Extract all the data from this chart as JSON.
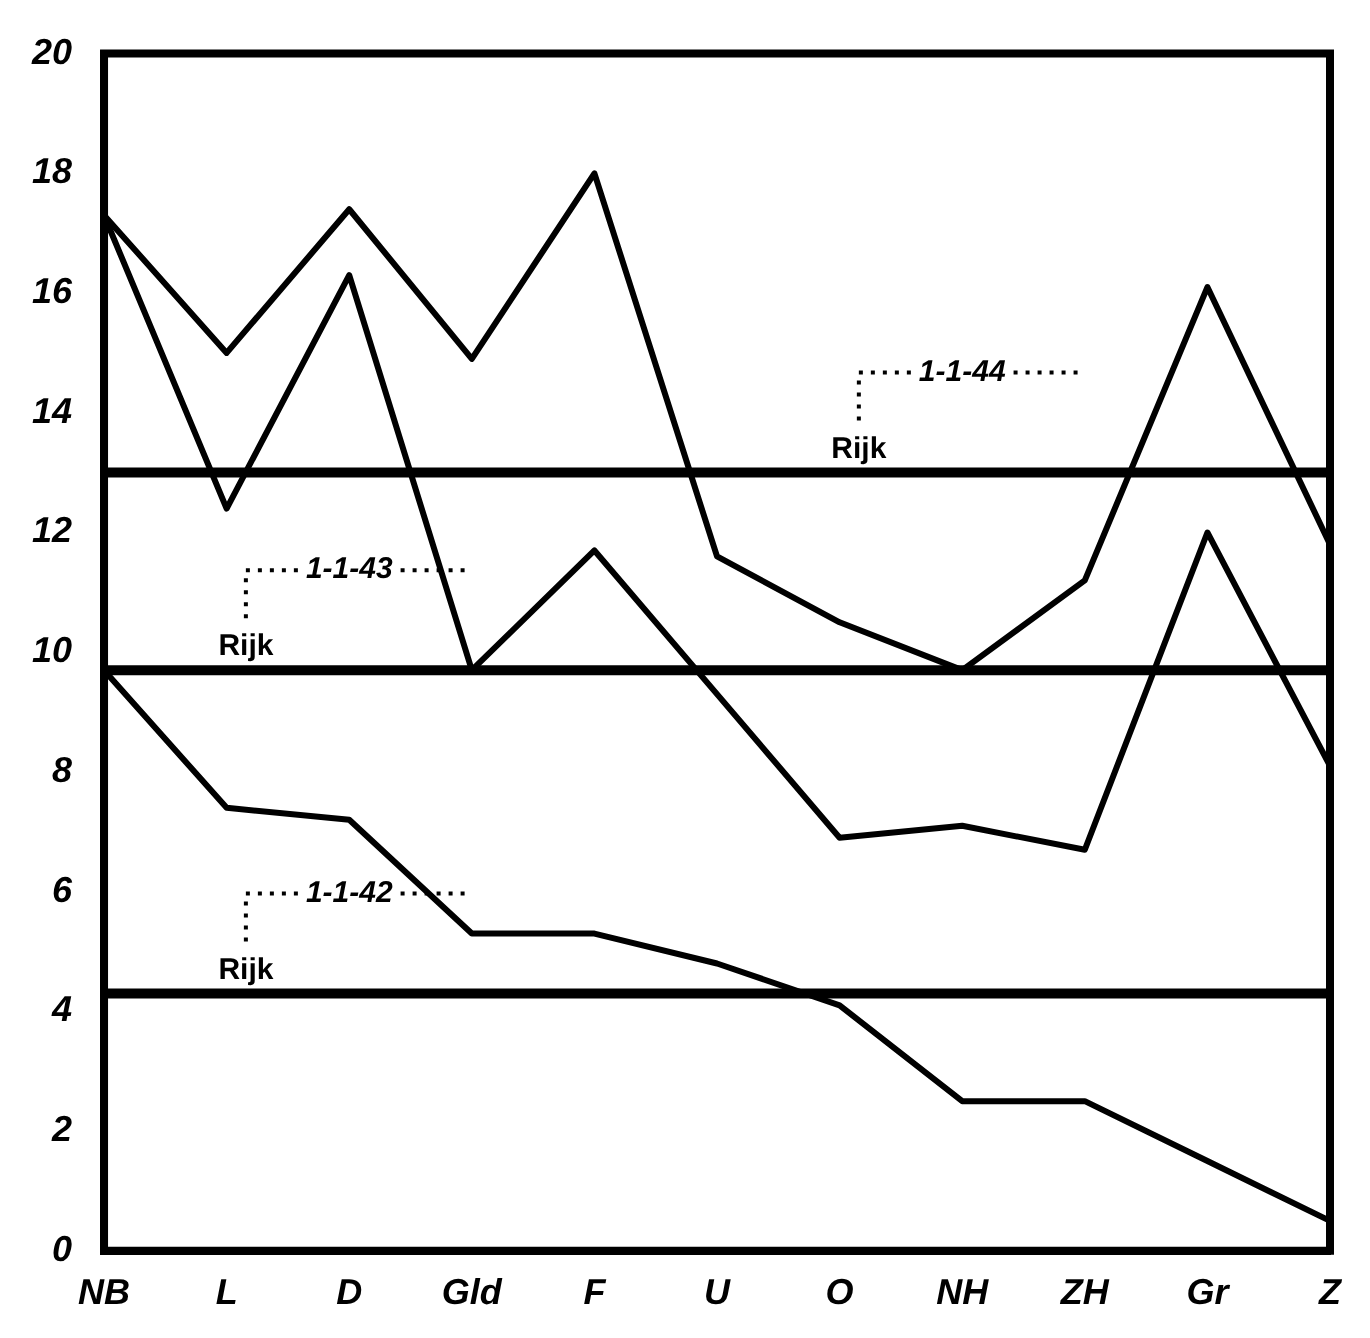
{
  "chart_data": {
    "type": "line",
    "categories": [
      "NB",
      "L",
      "D",
      "Gld",
      "F",
      "U",
      "O",
      "NH",
      "ZH",
      "Gr",
      "Z"
    ],
    "series": [
      {
        "color": "#000000",
        "values": [
          9.7,
          7.4,
          7.2,
          5.3,
          5.3,
          4.8,
          4.1,
          2.5,
          2.5,
          1.5,
          0.5
        ]
      },
      {
        "color": "#000000",
        "values": [
          17.3,
          12.4,
          16.3,
          9.7,
          11.7,
          9.3,
          6.9,
          7.1,
          6.7,
          12.0,
          8.1
        ]
      },
      {
        "color": "#000000",
        "values": [
          17.3,
          15.0,
          17.4,
          14.9,
          18.0,
          11.6,
          10.5,
          9.7,
          11.2,
          16.1,
          11.8
        ]
      }
    ],
    "ylim": [
      0,
      20
    ],
    "yticks": [
      0,
      2,
      4,
      6,
      8,
      10,
      12,
      14,
      16,
      18,
      20
    ],
    "grid": false,
    "legend": false,
    "marker": "none",
    "line_style": "solid",
    "ref_lines": [
      {
        "axis": "y",
        "value": 4.3,
        "label": "Rijk",
        "color": "#000000"
      },
      {
        "axis": "y",
        "value": 9.7,
        "label": "Rijk",
        "color": "#000000"
      },
      {
        "axis": "y",
        "value": 13.0,
        "label": "Rijk",
        "color": "#000000"
      }
    ],
    "annotations": [
      "1-1-42",
      "1-1-43",
      "1-1-44"
    ]
  }
}
